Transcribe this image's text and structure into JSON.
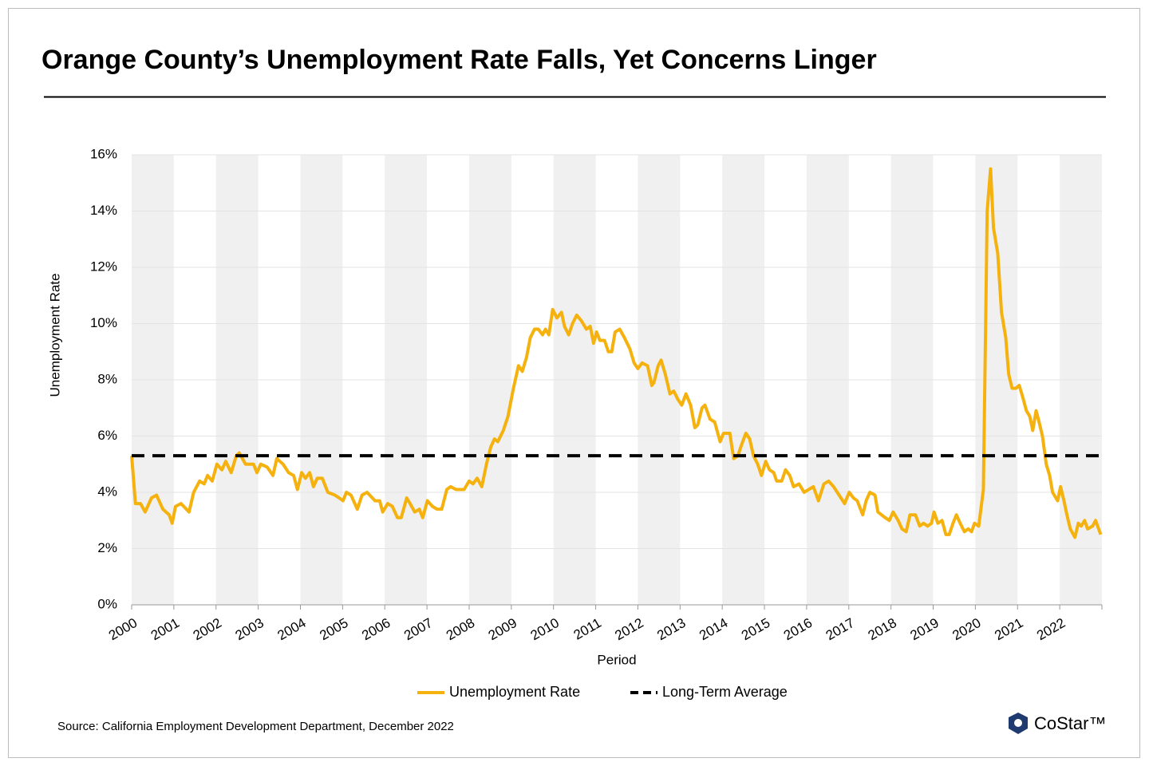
{
  "chart_data": {
    "type": "line",
    "title": "Orange County’s Unemployment Rate Falls, Yet Concerns Linger",
    "y_label": "Unemployment Rate",
    "x_label": "Period",
    "source": "Source: California Employment Development Department, December 2022",
    "logo": "CoStar™",
    "xlim": [
      2000,
      2023
    ],
    "xticks": [
      2000,
      2001,
      2002,
      2003,
      2004,
      2005,
      2006,
      2007,
      2008,
      2009,
      2010,
      2011,
      2012,
      2013,
      2014,
      2015,
      2016,
      2017,
      2018,
      2019,
      2020,
      2021,
      2022
    ],
    "ylim": [
      0,
      16
    ],
    "yticks": [
      {
        "value": 0,
        "label": "0%"
      },
      {
        "value": 2,
        "label": "2%"
      },
      {
        "value": 4,
        "label": "4%"
      },
      {
        "value": 6,
        "label": "6%"
      },
      {
        "value": 8,
        "label": "8%"
      },
      {
        "value": 10,
        "label": "10%"
      },
      {
        "value": 12,
        "label": "12%"
      },
      {
        "value": 14,
        "label": "14%"
      },
      {
        "value": 16,
        "label": "16%"
      }
    ],
    "grid": true,
    "series": [
      {
        "name": "Unemployment Rate",
        "color": "#f5b20f",
        "x": [
          2000.0,
          2000.09,
          2000.21,
          2000.32,
          2000.47,
          2000.59,
          2000.74,
          2000.89,
          2000.96,
          2001.04,
          2001.17,
          2001.36,
          2001.47,
          2001.61,
          2001.72,
          2001.8,
          2001.91,
          2002.02,
          2002.14,
          2002.23,
          2002.36,
          2002.48,
          2002.55,
          2002.7,
          2002.89,
          2002.97,
          2003.06,
          2003.21,
          2003.35,
          2003.44,
          2003.59,
          2003.72,
          2003.84,
          2003.93,
          2004.03,
          2004.12,
          2004.22,
          2004.31,
          2004.4,
          2004.52,
          2004.65,
          2004.82,
          2004.92,
          2005.01,
          2005.09,
          2005.2,
          2005.35,
          2005.46,
          2005.58,
          2005.77,
          2005.88,
          2005.95,
          2006.07,
          2006.18,
          2006.3,
          2006.39,
          2006.52,
          2006.6,
          2006.71,
          2006.82,
          2006.9,
          2007.01,
          2007.13,
          2007.24,
          2007.35,
          2007.47,
          2007.56,
          2007.69,
          2007.88,
          2008.0,
          2008.09,
          2008.19,
          2008.3,
          2008.41,
          2008.51,
          2008.6,
          2008.68,
          2008.81,
          2008.92,
          2009.05,
          2009.17,
          2009.26,
          2009.36,
          2009.45,
          2009.55,
          2009.64,
          2009.74,
          2009.81,
          2009.89,
          2009.98,
          2010.08,
          2010.19,
          2010.26,
          2010.36,
          2010.45,
          2010.55,
          2010.66,
          2010.78,
          2010.87,
          2010.95,
          2011.02,
          2011.1,
          2011.21,
          2011.3,
          2011.38,
          2011.46,
          2011.57,
          2011.68,
          2011.81,
          2011.91,
          2012.0,
          2012.1,
          2012.23,
          2012.33,
          2012.38,
          2012.48,
          2012.55,
          2012.65,
          2012.76,
          2012.85,
          2012.95,
          2013.04,
          2013.14,
          2013.25,
          2013.35,
          2013.42,
          2013.52,
          2013.59,
          2013.71,
          2013.82,
          2013.95,
          2014.03,
          2014.18,
          2014.27,
          2014.37,
          2014.46,
          2014.56,
          2014.65,
          2014.74,
          2014.84,
          2014.93,
          2015.03,
          2015.12,
          2015.22,
          2015.29,
          2015.41,
          2015.5,
          2015.6,
          2015.69,
          2015.82,
          2015.94,
          2016.05,
          2016.16,
          2016.28,
          2016.41,
          2016.52,
          2016.64,
          2016.77,
          2016.9,
          2017.01,
          2017.11,
          2017.2,
          2017.33,
          2017.41,
          2017.5,
          2017.62,
          2017.69,
          2017.86,
          2017.96,
          2018.05,
          2018.17,
          2018.26,
          2018.36,
          2018.45,
          2018.58,
          2018.68,
          2018.77,
          2018.87,
          2018.96,
          2019.02,
          2019.11,
          2019.21,
          2019.3,
          2019.38,
          2019.47,
          2019.55,
          2019.64,
          2019.74,
          2019.83,
          2019.91,
          2019.98,
          2020.08,
          2020.19,
          2020.28,
          2020.36,
          2020.43,
          2020.53,
          2020.62,
          2020.72,
          2020.79,
          2020.87,
          2020.96,
          2021.04,
          2021.12,
          2021.21,
          2021.29,
          2021.36,
          2021.44,
          2021.51,
          2021.59,
          2021.68,
          2021.76,
          2021.83,
          2021.95,
          2022.02,
          2022.1,
          2022.17,
          2022.25,
          2022.36,
          2022.44,
          2022.51,
          2022.59,
          2022.66,
          2022.78,
          2022.85,
          2022.97
        ],
        "values": [
          5.3,
          3.6,
          3.6,
          3.3,
          3.8,
          3.9,
          3.4,
          3.2,
          2.9,
          3.5,
          3.6,
          3.3,
          4.0,
          4.4,
          4.3,
          4.6,
          4.4,
          5.0,
          4.8,
          5.1,
          4.7,
          5.3,
          5.4,
          5.0,
          5.0,
          4.7,
          5.0,
          4.9,
          4.6,
          5.2,
          5.0,
          4.7,
          4.6,
          4.1,
          4.7,
          4.5,
          4.7,
          4.2,
          4.5,
          4.5,
          4.0,
          3.9,
          3.8,
          3.7,
          4.0,
          3.9,
          3.4,
          3.9,
          4.0,
          3.7,
          3.7,
          3.3,
          3.6,
          3.5,
          3.1,
          3.1,
          3.8,
          3.6,
          3.3,
          3.4,
          3.1,
          3.7,
          3.5,
          3.4,
          3.4,
          4.1,
          4.2,
          4.1,
          4.1,
          4.4,
          4.3,
          4.5,
          4.2,
          5.0,
          5.6,
          5.9,
          5.8,
          6.2,
          6.7,
          7.7,
          8.5,
          8.3,
          8.8,
          9.5,
          9.8,
          9.8,
          9.6,
          9.8,
          9.6,
          10.5,
          10.2,
          10.4,
          9.9,
          9.6,
          10.0,
          10.3,
          10.1,
          9.8,
          9.9,
          9.3,
          9.7,
          9.4,
          9.4,
          9.0,
          9.0,
          9.7,
          9.8,
          9.5,
          9.1,
          8.6,
          8.4,
          8.6,
          8.5,
          7.8,
          7.9,
          8.5,
          8.7,
          8.2,
          7.5,
          7.6,
          7.3,
          7.1,
          7.5,
          7.1,
          6.3,
          6.4,
          7.0,
          7.1,
          6.6,
          6.5,
          5.8,
          6.1,
          6.1,
          5.2,
          5.3,
          5.7,
          6.1,
          5.9,
          5.3,
          5.0,
          4.6,
          5.1,
          4.8,
          4.7,
          4.4,
          4.4,
          4.8,
          4.6,
          4.2,
          4.3,
          4.0,
          4.1,
          4.2,
          3.7,
          4.3,
          4.4,
          4.2,
          3.9,
          3.6,
          4.0,
          3.8,
          3.7,
          3.2,
          3.7,
          4.0,
          3.9,
          3.3,
          3.1,
          3.0,
          3.3,
          3.0,
          2.7,
          2.6,
          3.2,
          3.2,
          2.8,
          2.9,
          2.8,
          2.9,
          3.3,
          2.9,
          3.0,
          2.5,
          2.5,
          2.9,
          3.2,
          2.9,
          2.6,
          2.7,
          2.6,
          2.9,
          2.8,
          4.1,
          14.0,
          15.5,
          13.4,
          12.5,
          10.4,
          9.5,
          8.2,
          7.7,
          7.7,
          7.8,
          7.4,
          6.9,
          6.7,
          6.2,
          6.9,
          6.5,
          6.0,
          5.0,
          4.6,
          4.0,
          3.7,
          4.2,
          3.7,
          3.2,
          2.7,
          2.4,
          2.9,
          2.8,
          3.0,
          2.7,
          2.8,
          3.0,
          2.5
        ]
      },
      {
        "name": "Long-Term Average",
        "color": "#000000",
        "dashed": true,
        "x": [
          2000,
          2023
        ],
        "values": [
          5.3,
          5.3
        ]
      }
    ]
  }
}
